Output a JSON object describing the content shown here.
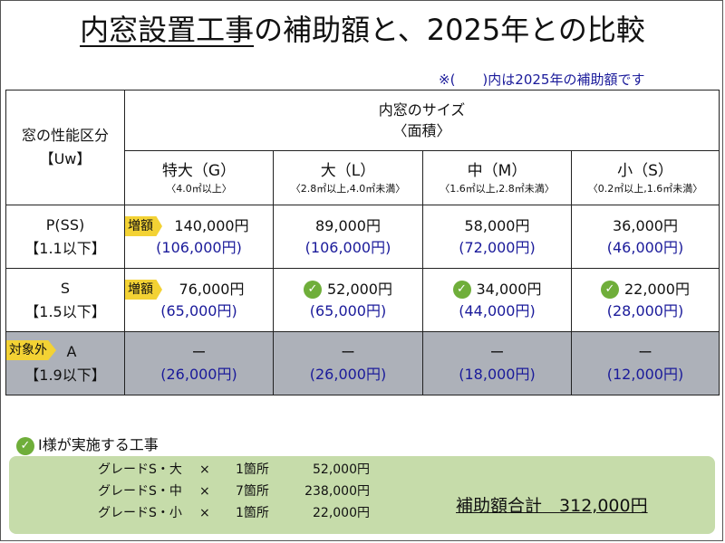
{
  "title": {
    "underlined": "内窓設置工事",
    "rest": "の補助額と、2025年との比較"
  },
  "note": "※(　　)内は2025年の補助額です",
  "table": {
    "corner": [
      "窓の性能区分",
      "【Uw】"
    ],
    "size_header": [
      "内窓のサイズ",
      "〈面積〉"
    ],
    "sizes": [
      {
        "main": "特大（G）",
        "sub": "〈4.0㎡以上〉"
      },
      {
        "main": "大（L）",
        "sub": "〈2.8㎡以上,4.0㎡未満〉"
      },
      {
        "main": "中（M）",
        "sub": "〈1.6㎡以上,2.8㎡未満〉"
      },
      {
        "main": "小（S）",
        "sub": "〈0.2㎡以上,1.6㎡未満〉"
      }
    ],
    "rows": [
      {
        "label": [
          "P(SS)",
          "【1.1以下】"
        ],
        "tag": "",
        "cells": [
          {
            "price": "140,000円",
            "sub": "(106,000円)",
            "tag": "増額",
            "check": false
          },
          {
            "price": "89,000円",
            "sub": "(106,000円)",
            "tag": "",
            "check": false
          },
          {
            "price": "58,000円",
            "sub": "(72,000円)",
            "tag": "",
            "check": false
          },
          {
            "price": "36,000円",
            "sub": "(46,000円)",
            "tag": "",
            "check": false
          }
        ]
      },
      {
        "label": [
          "S",
          "【1.5以下】"
        ],
        "tag": "",
        "cells": [
          {
            "price": "76,000円",
            "sub": "(65,000円)",
            "tag": "増額",
            "check": false
          },
          {
            "price": "52,000円",
            "sub": "(65,000円)",
            "tag": "",
            "check": true
          },
          {
            "price": "34,000円",
            "sub": "(44,000円)",
            "tag": "",
            "check": true
          },
          {
            "price": "22,000円",
            "sub": "(28,000円)",
            "tag": "",
            "check": true
          }
        ]
      },
      {
        "label": [
          "A",
          "【1.9以下】"
        ],
        "tag": "対象外",
        "cells": [
          {
            "price": "ー",
            "sub": "(26,000円)",
            "tag": "",
            "check": false
          },
          {
            "price": "ー",
            "sub": "(26,000円)",
            "tag": "",
            "check": false
          },
          {
            "price": "ー",
            "sub": "(18,000円)",
            "tag": "",
            "check": false
          },
          {
            "price": "ー",
            "sub": "(12,000円)",
            "tag": "",
            "check": false
          }
        ]
      }
    ]
  },
  "works": {
    "title": "I様が実施する工事",
    "lines": [
      {
        "item": "グレードS・大",
        "times": "×",
        "qty": "1箇所",
        "amount": "52,000円"
      },
      {
        "item": "グレードS・中",
        "times": "×",
        "qty": "7箇所",
        "amount": "238,000円"
      },
      {
        "item": "グレードS・小",
        "times": "×",
        "qty": "1箇所",
        "amount": "22,000円"
      }
    ],
    "total_label": "補助額合計",
    "total_value": "312,000円"
  },
  "colors": {
    "tag": "#f3d234",
    "check": "#6fae3a",
    "subtext": "#1a1a9a",
    "gray_row": "#adb1b9",
    "summary_bg": "#c6dcaa"
  },
  "icons": {
    "check": "check-circle-icon"
  }
}
